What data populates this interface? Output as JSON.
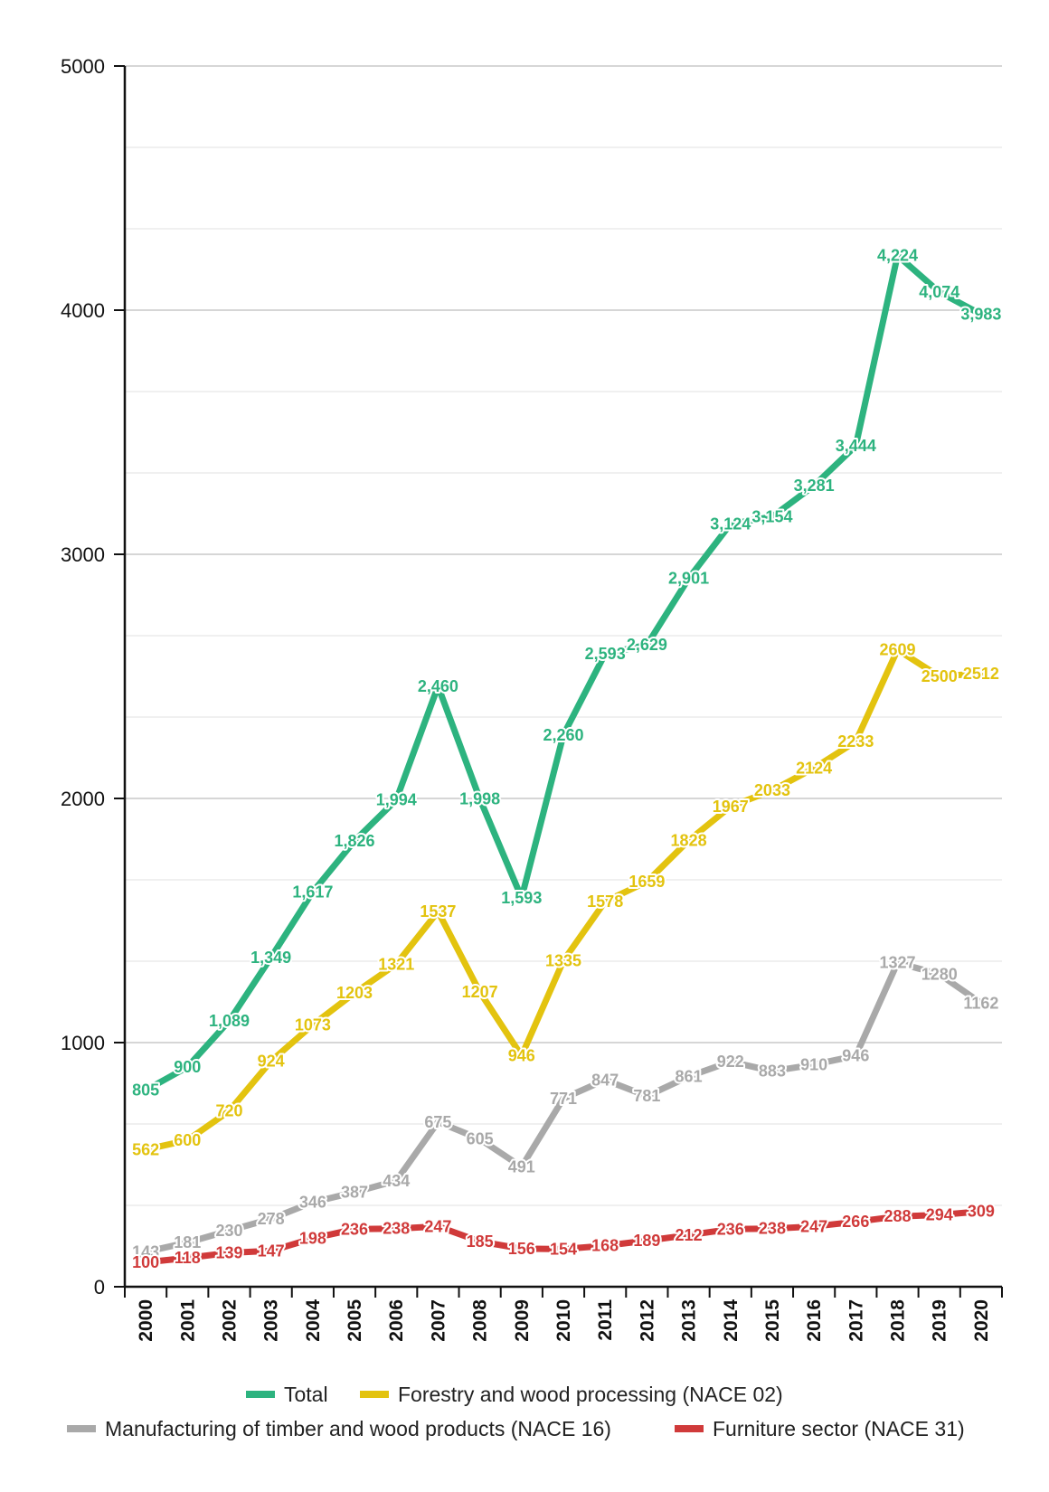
{
  "chart_data": {
    "type": "line",
    "title": "",
    "xlabel": "",
    "ylabel": "",
    "ylim": [
      0,
      5000
    ],
    "y_ticks": [
      0,
      1000,
      2000,
      3000,
      4000,
      5000
    ],
    "grid": true,
    "legend_position": "bottom",
    "categories": [
      "2000",
      "2001",
      "2002",
      "2003",
      "2004",
      "2005",
      "2006",
      "2007",
      "2008",
      "2009",
      "2010",
      "2011",
      "2012",
      "2013",
      "2014",
      "2015",
      "2016",
      "2017",
      "2018",
      "2019",
      "2020"
    ],
    "series": [
      {
        "name": "Total",
        "color": "#2db37f",
        "values": [
          805,
          900,
          1089,
          1349,
          1617,
          1826,
          1994,
          2460,
          1998,
          1593,
          2260,
          2593,
          2629,
          2901,
          3124,
          3154,
          3281,
          3444,
          4224,
          4074,
          3983
        ],
        "labels": [
          "805",
          "900",
          "1,089",
          "1,349",
          "1,617",
          "1,826",
          "1,994",
          "2,460",
          "1,998",
          "1,593",
          "2,260",
          "2,593",
          "2,629",
          "2,901",
          "3,124",
          "3,154",
          "3,281",
          "3,444",
          "4,224",
          "4,074",
          "3,983"
        ]
      },
      {
        "name": "Forestry and wood processing (NACE 02)",
        "color": "#e3c30f",
        "values": [
          562,
          600,
          720,
          924,
          1073,
          1203,
          1321,
          1537,
          1207,
          946,
          1335,
          1578,
          1659,
          1828,
          1967,
          2033,
          2124,
          2233,
          2609,
          2500,
          2512
        ],
        "labels": [
          "562",
          "600",
          "720",
          "924",
          "1073",
          "1203",
          "1321",
          "1537",
          "1207",
          "946",
          "1335",
          "1578",
          "1659",
          "1828",
          "1967",
          "2033",
          "2124",
          "2233",
          "2609",
          "2500",
          "2512"
        ]
      },
      {
        "name": "Manufacturing of timber and wood products (NACE 16)",
        "color": "#a9a9a9",
        "values": [
          143,
          181,
          230,
          278,
          346,
          387,
          434,
          675,
          605,
          491,
          771,
          847,
          781,
          861,
          922,
          883,
          910,
          946,
          1327,
          1280,
          1162
        ],
        "labels": [
          "143",
          "181",
          "230",
          "278",
          "346",
          "387",
          "434",
          "675",
          "605",
          "491",
          "771",
          "847",
          "781",
          "861",
          "922",
          "883",
          "910",
          "946",
          "1327",
          "1280",
          "1162"
        ]
      },
      {
        "name": "Furniture sector (NACE 31)",
        "color": "#d03a3a",
        "values": [
          100,
          118,
          139,
          147,
          198,
          236,
          238,
          247,
          185,
          156,
          154,
          168,
          189,
          212,
          236,
          238,
          247,
          266,
          288,
          294,
          309
        ],
        "labels": [
          "100",
          "118",
          "139",
          "147",
          "198",
          "236",
          "238",
          "247",
          "185",
          "156",
          "154",
          "168",
          "189",
          "212",
          "236",
          "238",
          "247",
          "266",
          "288",
          "294",
          "309"
        ]
      }
    ]
  }
}
